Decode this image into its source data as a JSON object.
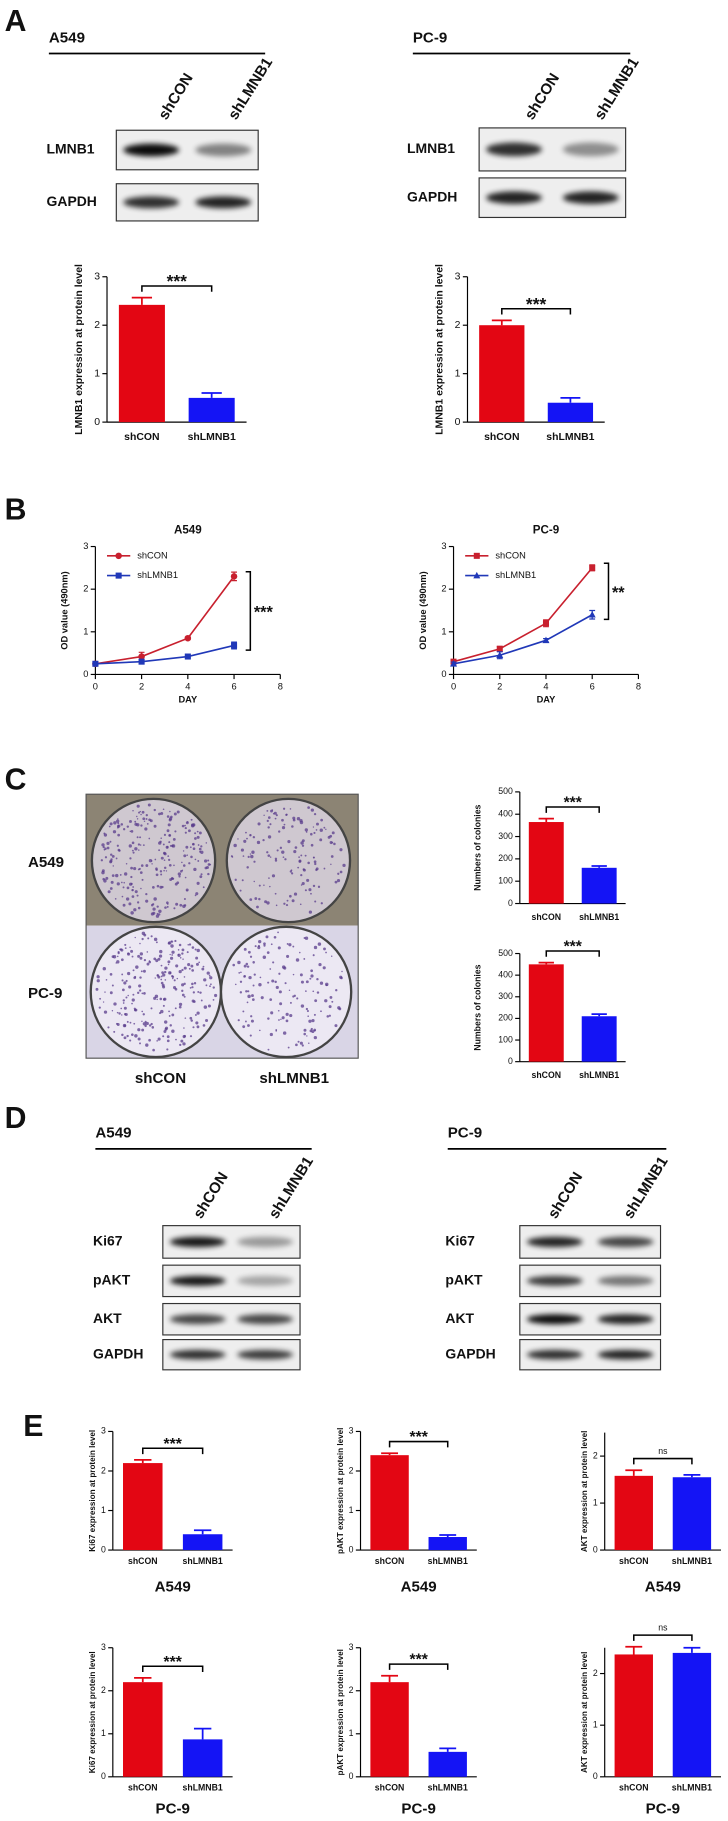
{
  "panel_labels": [
    "A",
    "B",
    "C",
    "D",
    "E"
  ],
  "blots": [
    {
      "title": "A549",
      "lanes": [
        "shCON",
        "shLMNB1"
      ],
      "bands": [
        "LMNB1",
        "GAPDH"
      ]
    },
    {
      "title": "PC-9",
      "lanes": [
        "shCON",
        "shLMNB1"
      ],
      "bands": [
        "LMNB1",
        "GAPDH"
      ]
    },
    {
      "title": "A549",
      "lanes": [
        "shCON",
        "shLMNB1"
      ],
      "bands": [
        "Ki67",
        "pAKT",
        "AKT",
        "GAPDH"
      ]
    },
    {
      "title": "PC-9",
      "lanes": [
        "shCON",
        "shLMNB1"
      ],
      "bands": [
        "Ki67",
        "pAKT",
        "AKT",
        "GAPDH"
      ]
    }
  ],
  "colony_image": {
    "rows": [
      "A549",
      "PC-9"
    ],
    "columns": [
      "shCON",
      "shLMNB1"
    ]
  },
  "chart_data": [
    {
      "type": "bar",
      "ylabel": "LMNB1 expression at protein level",
      "categories": [
        "shCON",
        "shLMNB1"
      ],
      "values": [
        2.42,
        0.5
      ],
      "errors": [
        0.15,
        0.1
      ],
      "colors": [
        "#e30613",
        "#1414f5"
      ],
      "ylim": [
        0,
        3
      ],
      "yticks": [
        0,
        1,
        2,
        3
      ],
      "significance": "***"
    },
    {
      "type": "bar",
      "ylabel": "LMNB1 expression at protein level",
      "categories": [
        "shCON",
        "shLMNB1"
      ],
      "values": [
        2.0,
        0.4
      ],
      "errors": [
        0.1,
        0.1
      ],
      "colors": [
        "#e30613",
        "#1414f5"
      ],
      "ylim": [
        0,
        3
      ],
      "yticks": [
        0,
        1,
        2,
        3
      ],
      "significance": "***"
    },
    {
      "type": "line",
      "title": "A549",
      "xlabel": "DAY",
      "ylabel": "OD value (490nm)",
      "x": [
        0,
        2,
        4,
        6
      ],
      "series": [
        {
          "name": "shCON",
          "color": "#c8202e",
          "marker": "circle",
          "values": [
            0.25,
            0.42,
            0.85,
            2.3
          ],
          "errors": [
            0.05,
            0.1,
            0.03,
            0.1
          ]
        },
        {
          "name": "shLMNB1",
          "color": "#2038b8",
          "marker": "square",
          "values": [
            0.25,
            0.3,
            0.42,
            0.68
          ],
          "errors": [
            0.03,
            0.05,
            0.03,
            0.08
          ]
        }
      ],
      "xlim": [
        0,
        8
      ],
      "xticks": [
        0,
        2,
        4,
        6,
        8
      ],
      "ylim": [
        0,
        3
      ],
      "yticks": [
        0,
        1,
        2,
        3
      ],
      "significance": "***"
    },
    {
      "type": "line",
      "title": "PC-9",
      "xlabel": "DAY",
      "ylabel": "OD value (490nm)",
      "x": [
        0,
        2,
        4,
        6
      ],
      "series": [
        {
          "name": "shCON",
          "color": "#c8202e",
          "marker": "square",
          "values": [
            0.3,
            0.6,
            1.2,
            2.5
          ],
          "errors": [
            0.05,
            0.06,
            0.08,
            0.07
          ]
        },
        {
          "name": "shLMNB1",
          "color": "#2038b8",
          "marker": "triangle",
          "values": [
            0.25,
            0.45,
            0.8,
            1.4
          ],
          "errors": [
            0.04,
            0.08,
            0.04,
            0.1
          ]
        }
      ],
      "xlim": [
        0,
        8
      ],
      "xticks": [
        0,
        2,
        4,
        6,
        8
      ],
      "ylim": [
        0,
        3
      ],
      "yticks": [
        0,
        1,
        2,
        3
      ],
      "significance": "**"
    },
    {
      "type": "bar",
      "ylabel": "Numbers of colonies",
      "categories": [
        "shCON",
        "shLMNB1"
      ],
      "values": [
        365,
        160
      ],
      "errors": [
        15,
        8
      ],
      "colors": [
        "#e30613",
        "#1414f5"
      ],
      "ylim": [
        0,
        500
      ],
      "yticks": [
        0,
        100,
        200,
        300,
        400,
        500
      ],
      "significance": "***"
    },
    {
      "type": "bar",
      "ylabel": "Numbers of colonies",
      "categories": [
        "shCON",
        "shLMNB1"
      ],
      "values": [
        450,
        210
      ],
      "errors": [
        8,
        10
      ],
      "colors": [
        "#e30613",
        "#1414f5"
      ],
      "ylim": [
        0,
        500
      ],
      "yticks": [
        0,
        100,
        200,
        300,
        400,
        500
      ],
      "significance": "***"
    },
    {
      "type": "bar",
      "ylabel": "Ki67 expression at protein level",
      "caption": "A549",
      "categories": [
        "shCON",
        "shLMNB1"
      ],
      "values": [
        2.2,
        0.4
      ],
      "errors": [
        0.08,
        0.1
      ],
      "colors": [
        "#e30613",
        "#1414f5"
      ],
      "ylim": [
        0,
        3
      ],
      "yticks": [
        0,
        1,
        2,
        3
      ],
      "significance": "***"
    },
    {
      "type": "bar",
      "ylabel": "pAKT  expression at protein level",
      "caption": "A549",
      "categories": [
        "shCON",
        "shLMNB1"
      ],
      "values": [
        2.4,
        0.33
      ],
      "errors": [
        0.05,
        0.05
      ],
      "colors": [
        "#e30613",
        "#1414f5"
      ],
      "ylim": [
        0,
        3
      ],
      "yticks": [
        0,
        1,
        2,
        3
      ],
      "significance": "***"
    },
    {
      "type": "bar",
      "ylabel": "AKT expression at protein level",
      "caption": "A549",
      "categories": [
        "shCON",
        "shLMNB1"
      ],
      "values": [
        1.58,
        1.55
      ],
      "errors": [
        0.12,
        0.05
      ],
      "colors": [
        "#e30613",
        "#1414f5"
      ],
      "ylim": [
        0,
        2.5
      ],
      "yticks": [
        0,
        1,
        2
      ],
      "significance": "ns"
    },
    {
      "type": "bar",
      "ylabel": "Ki67 expression at protein level",
      "caption": "PC-9",
      "categories": [
        "shCON",
        "shLMNB1"
      ],
      "values": [
        2.2,
        0.87
      ],
      "errors": [
        0.1,
        0.25
      ],
      "colors": [
        "#e30613",
        "#1414f5"
      ],
      "ylim": [
        0,
        3
      ],
      "yticks": [
        0,
        1,
        2,
        3
      ],
      "significance": "***"
    },
    {
      "type": "bar",
      "ylabel": "pAKT  expression at protein level",
      "caption": "PC-9",
      "categories": [
        "shCON",
        "shLMNB1"
      ],
      "values": [
        2.2,
        0.58
      ],
      "errors": [
        0.15,
        0.08
      ],
      "colors": [
        "#e30613",
        "#1414f5"
      ],
      "ylim": [
        0,
        3
      ],
      "yticks": [
        0,
        1,
        2,
        3
      ],
      "significance": "***"
    },
    {
      "type": "bar",
      "ylabel": "AKT expression at protein level",
      "caption": "PC-9",
      "categories": [
        "shCON",
        "shLMNB1"
      ],
      "values": [
        2.37,
        2.4
      ],
      "errors": [
        0.15,
        0.1
      ],
      "colors": [
        "#e30613",
        "#1414f5"
      ],
      "ylim": [
        0,
        2.5
      ],
      "yticks": [
        0,
        1,
        2
      ],
      "significance": "ns"
    }
  ]
}
